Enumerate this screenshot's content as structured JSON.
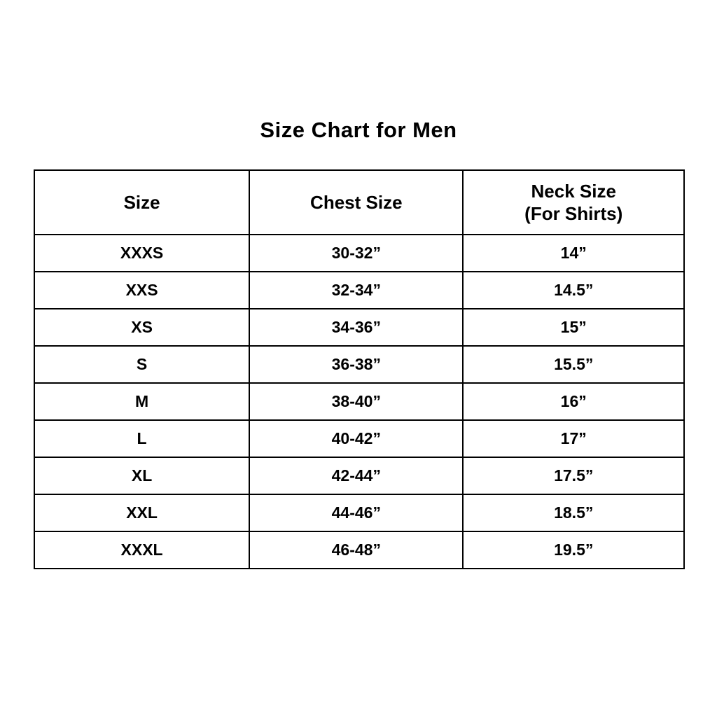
{
  "page": {
    "title": "Size Chart for Men"
  },
  "table": {
    "headers": [
      {
        "line1": "Size",
        "line2": ""
      },
      {
        "line1": "Chest Size",
        "line2": ""
      },
      {
        "line1": "Neck Size",
        "line2": "(For Shirts)"
      }
    ]
  },
  "chart_data": {
    "type": "table",
    "title": "Size Chart for Men",
    "columns": [
      "Size",
      "Chest Size",
      "Neck Size (For Shirts)"
    ],
    "rows": [
      [
        "XXXS",
        "30-32”",
        "14”"
      ],
      [
        "XXS",
        "32-34”",
        "14.5”"
      ],
      [
        "XS",
        "34-36”",
        "15”"
      ],
      [
        "S",
        "36-38”",
        "15.5”"
      ],
      [
        "M",
        "38-40”",
        "16”"
      ],
      [
        "L",
        "40-42”",
        "17”"
      ],
      [
        "XL",
        "42-44”",
        "17.5”"
      ],
      [
        "XXL",
        "44-46”",
        "18.5”"
      ],
      [
        "XXXL",
        "46-48”",
        "19.5”"
      ]
    ],
    "layout": {
      "grid": "all-borders",
      "border_color": "#000000",
      "background": "#ffffff",
      "text_style": "bold-centered"
    }
  }
}
